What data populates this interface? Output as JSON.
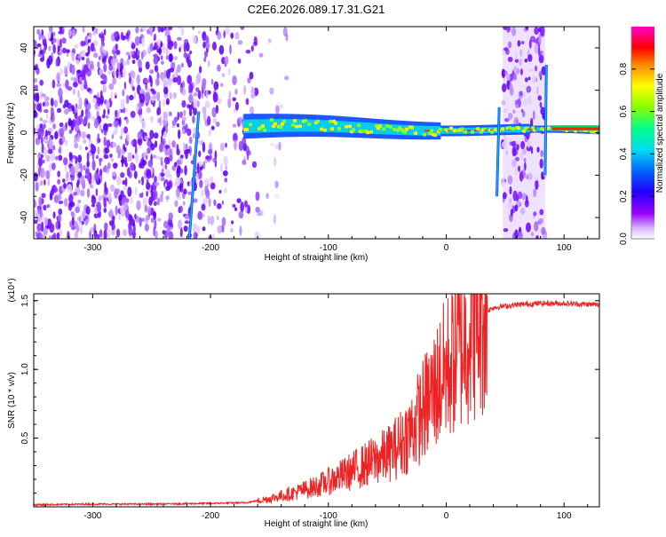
{
  "page_title": "C2E6.2026.089.17.31.G21",
  "chart_data": [
    {
      "type": "heatmap",
      "title": "C2E6.2026.089.17.31.G21",
      "xlabel": "Height of straight line (km)",
      "ylabel": "Frequency (Hz)",
      "xlim": [
        -350,
        130
      ],
      "ylim": [
        -50,
        50
      ],
      "x_ticks": [
        -300,
        -200,
        -100,
        0,
        100
      ],
      "y_ticks": [
        -40,
        -20,
        0,
        20,
        40
      ],
      "colorbar": {
        "label": "Normalized spectral amplitude",
        "range": [
          0,
          1
        ],
        "ticks": [
          "0.0",
          "0.2",
          "0.4",
          "0.6",
          "0.8"
        ],
        "colors": [
          "#ffffff",
          "#cc99ff",
          "#8800ff",
          "#0000ff",
          "#00c8ff",
          "#00ff66",
          "#aaff00",
          "#ffff00",
          "#ff8800",
          "#ff0000",
          "#ff00ff"
        ]
      },
      "regions": [
        {
          "kind": "noise",
          "x_range": [
            -350,
            -160
          ],
          "level": 0.15
        },
        {
          "kind": "sparse-noise",
          "x_range": [
            -160,
            -135
          ],
          "level": 0.05
        },
        {
          "kind": "signal-band",
          "x_range": [
            -172,
            130
          ],
          "center_hz": [
            3,
            2,
            0,
            1,
            2
          ],
          "amplitude": 0.6
        },
        {
          "kind": "noise",
          "x_range": [
            48,
            84
          ],
          "level": 0.15
        },
        {
          "kind": "streak",
          "x": [
            -218,
            -210
          ],
          "y": [
            -50,
            10
          ]
        },
        {
          "kind": "streak",
          "x": [
            43,
            45
          ],
          "y": [
            -30,
            12
          ]
        },
        {
          "kind": "streak",
          "x": [
            84,
            85
          ],
          "y": [
            -20,
            32
          ]
        }
      ]
    },
    {
      "type": "line",
      "xlabel": "Height of straight line (km)",
      "ylabel": "SNR (10 * v/v)",
      "y_scale_label": "(x10⁴)",
      "xlim": [
        -350,
        130
      ],
      "ylim": [
        0,
        1.55
      ],
      "x_ticks": [
        -300,
        -200,
        -100,
        0,
        100
      ],
      "y_ticks": [
        "0.5",
        "1.0",
        "1.5"
      ],
      "series": [
        {
          "color": "#ee2222",
          "x": [
            -350,
            -300,
            -250,
            -200,
            -170,
            -150,
            -130,
            -110,
            -90,
            -70,
            -50,
            -40,
            -30,
            -20,
            -10,
            0,
            10,
            20,
            30,
            40,
            60,
            80,
            100,
            130
          ],
          "y": [
            0.015,
            0.02,
            0.02,
            0.025,
            0.03,
            0.06,
            0.1,
            0.15,
            0.22,
            0.3,
            0.38,
            0.45,
            0.55,
            0.7,
            0.85,
            1.0,
            1.15,
            1.3,
            1.4,
            1.45,
            1.47,
            1.48,
            1.48,
            1.47
          ]
        }
      ]
    }
  ]
}
